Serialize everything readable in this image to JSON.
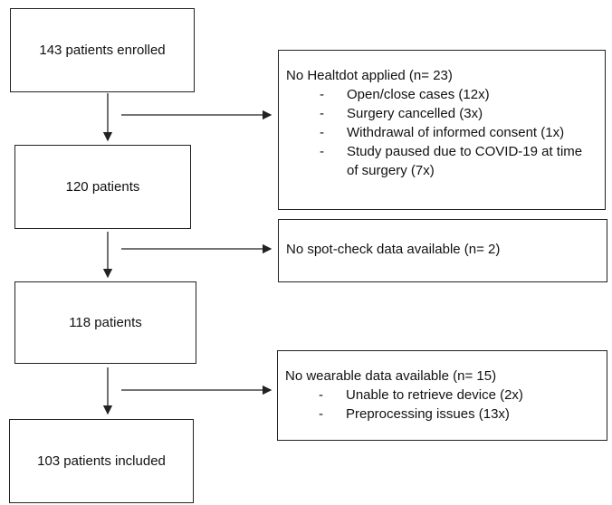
{
  "nodes": [
    {
      "label": "143 patients enrolled"
    },
    {
      "label": "120 patients"
    },
    {
      "label": "118 patients"
    },
    {
      "label": "103 patients included"
    }
  ],
  "exclusions": [
    {
      "title": "No Healtdot applied (n= 23)",
      "items": [
        "Open/close cases (12x)",
        "Surgery cancelled (3x)",
        "Withdrawal of informed consent (1x)",
        "Study paused due to COVID-19 at time of surgery (7x)"
      ]
    },
    {
      "title": "No spot-check data available (n= 2)",
      "items": []
    },
    {
      "title": "No wearable data available (n= 15)",
      "items": [
        "Unable to retrieve device (2x)",
        "Preprocessing issues (13x)"
      ]
    }
  ]
}
